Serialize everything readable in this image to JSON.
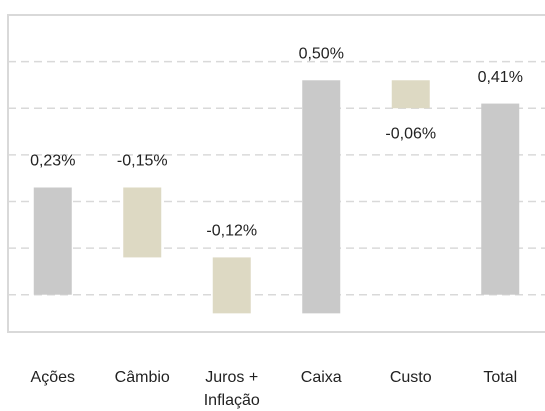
{
  "chart_data": {
    "type": "waterfall",
    "categories": [
      "Ações",
      "Câmbio",
      "Juros + Inflação",
      "Caixa",
      "Custo",
      "Total"
    ],
    "values": [
      0.23,
      -0.15,
      -0.12,
      0.5,
      -0.06,
      0.41
    ],
    "value_labels": [
      "0,23%",
      "-0,15%",
      "-0,12%",
      "0,50%",
      "-0,06%",
      "0,41%"
    ],
    "color_positive": "#c9c9c9",
    "color_negative": "#ddd9c3",
    "ylim": [
      -0.08,
      0.6
    ],
    "yticks": [
      0,
      0.1,
      0.2,
      0.3,
      0.4,
      0.5
    ],
    "grid": true
  }
}
